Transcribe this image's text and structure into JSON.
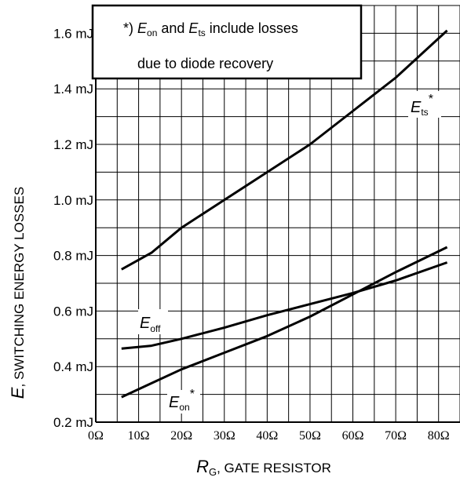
{
  "chart_data": {
    "type": "line",
    "x": [
      6,
      13,
      20,
      30,
      40,
      50,
      60,
      70,
      82
    ],
    "xlim": [
      0,
      85
    ],
    "ylim": [
      0.2,
      1.7
    ],
    "x_ticks": [
      0,
      10,
      20,
      30,
      40,
      50,
      60,
      70,
      80
    ],
    "x_tick_labels": [
      "0Ω",
      "10Ω",
      "20Ω",
      "30Ω",
      "40Ω",
      "50Ω",
      "60Ω",
      "70Ω",
      "80Ω"
    ],
    "y_ticks": [
      0.2,
      0.4,
      0.6,
      0.8,
      1.0,
      1.2,
      1.4,
      1.6
    ],
    "y_tick_labels": [
      "0.2 mJ",
      "0.4 mJ",
      "0.6 mJ",
      "0.8 mJ",
      "1.0 mJ",
      "1.2 mJ",
      "1.4 mJ",
      "1.6 mJ"
    ],
    "grid": true,
    "xlabel": {
      "main": "R",
      "sub": "G",
      "rest": ", GATE RESISTOR"
    },
    "ylabel": {
      "main": "E",
      "rest": ", SWITCHING ENERGY LOSSES"
    },
    "note": {
      "prefix": "*) ",
      "e1": "E",
      "e1_sub": "on",
      "mid": " and ",
      "e2": "E",
      "e2_sub": "ts",
      "suffix": " include losses",
      "line2": "due to diode recovery"
    },
    "series": [
      {
        "label": {
          "main": "E",
          "sub": "ts",
          "sup": "*"
        },
        "x": [
          6,
          13,
          20,
          30,
          40,
          50,
          60,
          70,
          82
        ],
        "y": [
          0.75,
          0.81,
          0.9,
          1.0,
          1.1,
          1.2,
          1.32,
          1.44,
          1.61
        ]
      },
      {
        "label": {
          "main": "E",
          "sub": "off",
          "sup": ""
        },
        "x": [
          6,
          13,
          20,
          30,
          40,
          50,
          60,
          70,
          82
        ],
        "y": [
          0.465,
          0.475,
          0.5,
          0.54,
          0.585,
          0.625,
          0.665,
          0.71,
          0.775
        ]
      },
      {
        "label": {
          "main": "E",
          "sub": "on",
          "sup": "*"
        },
        "x": [
          6,
          13,
          20,
          30,
          40,
          50,
          60,
          70,
          82
        ],
        "y": [
          0.29,
          0.34,
          0.39,
          0.45,
          0.51,
          0.58,
          0.66,
          0.74,
          0.83
        ]
      }
    ]
  }
}
